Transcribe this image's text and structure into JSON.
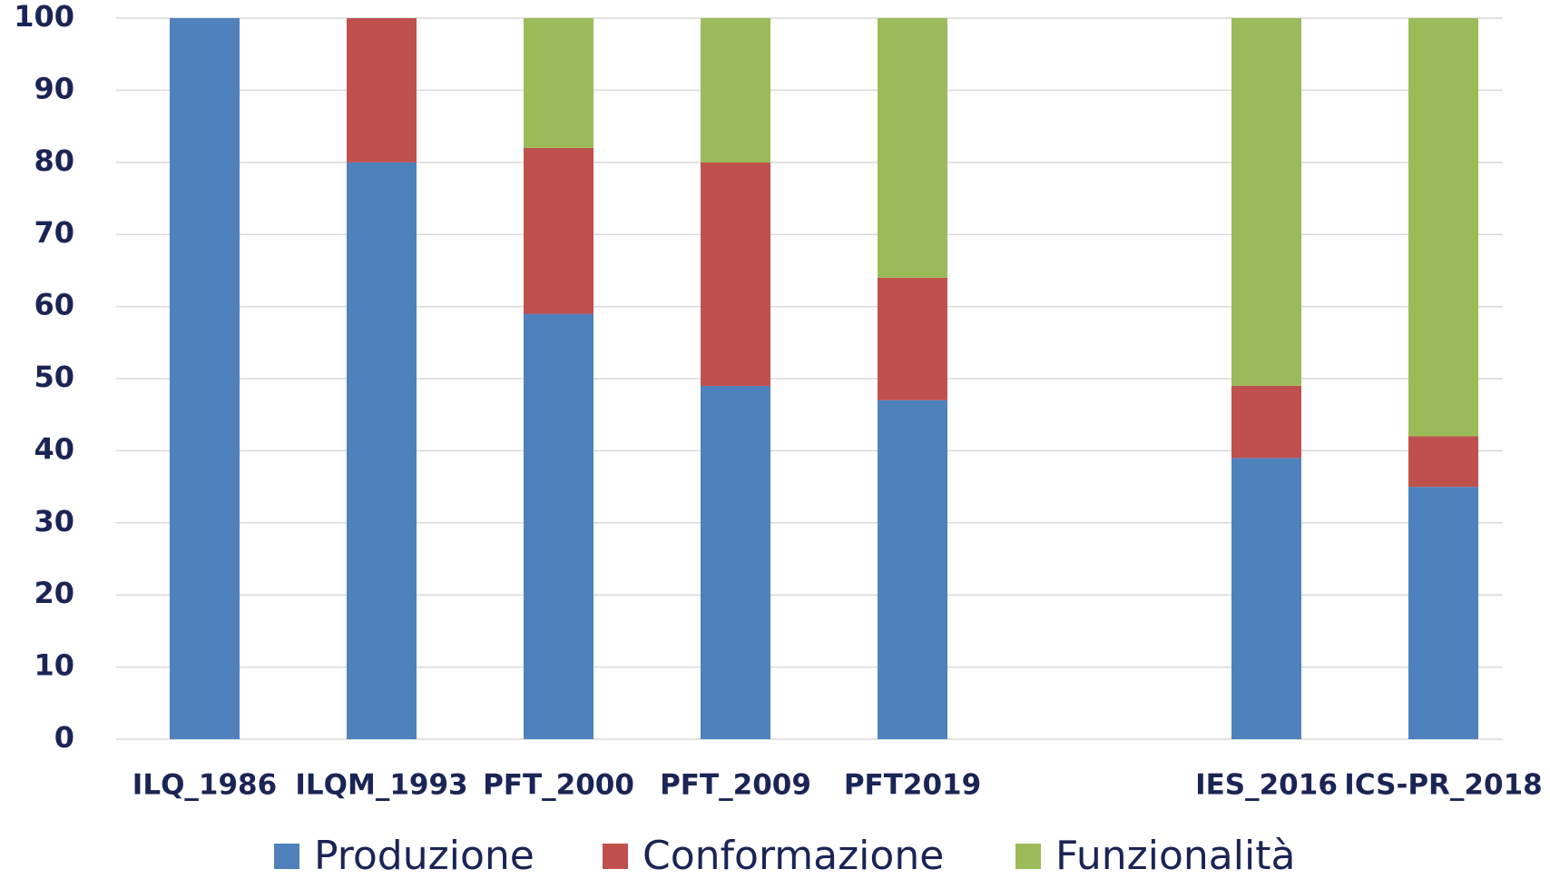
{
  "chart_data": {
    "type": "stacked-bar",
    "categories": [
      "ILQ_1986",
      "ILQM_1993",
      "PFT_2000",
      "PFT_2009",
      "PFT2019",
      null,
      "IES_2016",
      "ICS-PR_2018"
    ],
    "series": [
      {
        "name": "Produzione",
        "color": "#4f81bd",
        "values": [
          100,
          80,
          59,
          49,
          47,
          null,
          39,
          35
        ]
      },
      {
        "name": "Conformazione",
        "color": "#c0504d",
        "values": [
          0,
          20,
          23,
          31,
          17,
          null,
          10,
          7
        ]
      },
      {
        "name": "Funzionalità",
        "color": "#9bbb59",
        "values": [
          0,
          0,
          18,
          20,
          36,
          null,
          51,
          58
        ]
      }
    ],
    "ylim": [
      0,
      100
    ],
    "yticks": [
      0,
      10,
      20,
      30,
      40,
      50,
      60,
      70,
      80,
      90,
      100
    ],
    "grid": true
  }
}
